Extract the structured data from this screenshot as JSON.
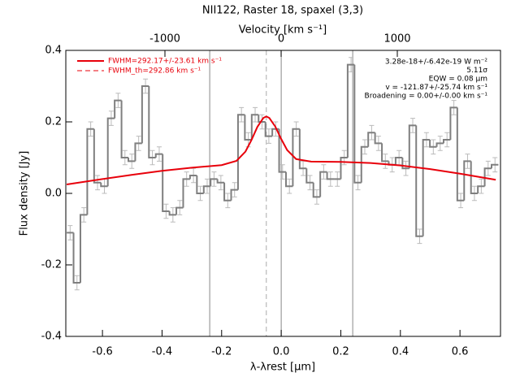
{
  "chart_data": {
    "type": "histogram",
    "title": "NII122, Raster 18, spaxel (3,3)",
    "x_label": "λ-λrest [μm]",
    "y_label": "Flux density [Jy]",
    "x2_label": "Velocity [km s⁻¹]",
    "bins": [
      -0.72,
      -0.697,
      -0.674,
      -0.651,
      -0.628,
      -0.605,
      -0.582,
      -0.559,
      -0.536,
      -0.513,
      -0.49,
      -0.467,
      -0.444,
      -0.421,
      -0.398,
      -0.375,
      -0.352,
      -0.329,
      -0.306,
      -0.283,
      -0.26,
      -0.237,
      -0.214,
      -0.191,
      -0.168,
      -0.145,
      -0.122,
      -0.099,
      -0.076,
      -0.053,
      -0.03,
      -0.007,
      0.016,
      0.039,
      0.062,
      0.085,
      0.108,
      0.131,
      0.154,
      0.177,
      0.2,
      0.223,
      0.246,
      0.269,
      0.292,
      0.315,
      0.338,
      0.361,
      0.384,
      0.407,
      0.43,
      0.453,
      0.476,
      0.499,
      0.522,
      0.545,
      0.568,
      0.591,
      0.614,
      0.637,
      0.66,
      0.683,
      0.706,
      0.729
    ],
    "values": [
      -0.11,
      -0.25,
      -0.06,
      0.18,
      0.03,
      0.02,
      0.21,
      0.26,
      0.1,
      0.09,
      0.14,
      0.3,
      0.1,
      0.11,
      -0.05,
      -0.06,
      -0.04,
      0.04,
      0.05,
      0.0,
      0.02,
      0.04,
      0.03,
      -0.02,
      0.01,
      0.22,
      0.15,
      0.22,
      0.2,
      0.16,
      0.18,
      0.06,
      0.02,
      0.18,
      0.07,
      0.03,
      -0.01,
      0.06,
      0.04,
      0.04,
      0.1,
      0.36,
      0.03,
      0.13,
      0.17,
      0.14,
      0.09,
      0.08,
      0.1,
      0.07,
      0.19,
      -0.12,
      0.15,
      0.13,
      0.14,
      0.15,
      0.24,
      -0.02,
      0.09,
      0.0,
      0.02,
      0.07,
      0.08
    ],
    "errors": [
      0.02,
      0.02,
      0.02,
      0.02,
      0.02,
      0.02,
      0.02,
      0.02,
      0.02,
      0.02,
      0.02,
      0.02,
      0.02,
      0.02,
      0.02,
      0.02,
      0.02,
      0.02,
      0.02,
      0.02,
      0.02,
      0.02,
      0.02,
      0.02,
      0.02,
      0.02,
      0.02,
      0.02,
      0.02,
      0.02,
      0.02,
      0.02,
      0.02,
      0.02,
      0.02,
      0.02,
      0.02,
      0.02,
      0.02,
      0.02,
      0.02,
      0.02,
      0.02,
      0.02,
      0.02,
      0.02,
      0.02,
      0.02,
      0.02,
      0.02,
      0.02,
      0.02,
      0.02,
      0.02,
      0.02,
      0.02,
      0.02,
      0.02,
      0.02,
      0.02,
      0.02,
      0.02,
      0.02
    ],
    "color": "#7f7f7f",
    "error_color": "#bbbbbb",
    "fit": {
      "name": "FWHM=292.17+/-23.61 km s⁻¹",
      "color": "#e8000b",
      "x": [
        -0.72,
        -0.6,
        -0.5,
        -0.4,
        -0.3,
        -0.2,
        -0.15,
        -0.12,
        -0.1,
        -0.08,
        -0.06,
        -0.05,
        -0.04,
        -0.02,
        0,
        0.02,
        0.05,
        0.1,
        0.2,
        0.3,
        0.4,
        0.5,
        0.6,
        0.72
      ],
      "values": [
        0.025,
        0.04,
        0.052,
        0.063,
        0.072,
        0.079,
        0.091,
        0.117,
        0.149,
        0.186,
        0.211,
        0.215,
        0.211,
        0.187,
        0.152,
        0.121,
        0.096,
        0.089,
        0.088,
        0.085,
        0.078,
        0.068,
        0.055,
        0.038
      ]
    },
    "fit_th": {
      "name": "FWHM_th=292.86 km s⁻¹",
      "color": "#e8000b"
    },
    "annotations": [
      "3.28e-18+/-6.42e-19 W m⁻²",
      "5.11σ",
      "EQW = 0.08 μm",
      "v = -121.87+/-25.74 km s⁻¹",
      "Broadening = 0.00+/-0.00 km s⁻¹"
    ],
    "vlines": [
      -0.24,
      0,
      0.24
    ],
    "dashed_vline": -0.05,
    "xlim": [
      -0.723,
      0.736
    ],
    "xticks": [
      -0.6,
      -0.4,
      -0.2,
      {
        "value": 0,
        "label": "0.0"
      },
      0.2,
      0.4,
      0.6
    ],
    "ylim": [
      -0.4,
      0.4
    ],
    "yticks": [
      -0.4,
      -0.2,
      {
        "value": 0,
        "label": "0.0"
      },
      0.2,
      0.4
    ],
    "x2lim": [
      -1853,
      1888
    ],
    "x2ticks": [
      -1000,
      0,
      1000
    ]
  }
}
